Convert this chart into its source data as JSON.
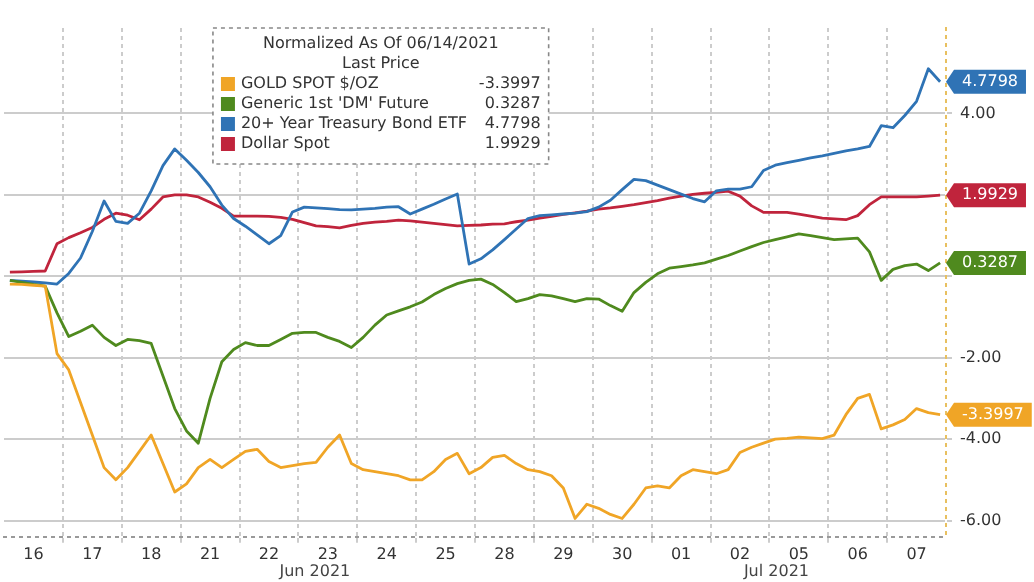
{
  "chart_data": {
    "type": "line",
    "legend_title": "Normalized As Of 06/14/2021",
    "subtitle": "Last Price",
    "legend": "top",
    "grid": true,
    "marker": "none",
    "line_style": "solid",
    "categories": [
      null,
      null,
      "16",
      null,
      null,
      null,
      null,
      "17",
      null,
      null,
      null,
      null,
      "18",
      null,
      null,
      null,
      null,
      "21",
      null,
      null,
      null,
      null,
      "22",
      null,
      null,
      null,
      null,
      "23",
      null,
      null,
      null,
      null,
      "24",
      null,
      null,
      null,
      null,
      "25",
      null,
      null,
      null,
      null,
      "28",
      null,
      null,
      null,
      null,
      "29",
      null,
      null,
      null,
      null,
      "30",
      null,
      null,
      null,
      null,
      "01",
      null,
      null,
      null,
      null,
      "02",
      null,
      null,
      null,
      null,
      "05",
      null,
      null,
      null,
      null,
      "06",
      null,
      null,
      null,
      null,
      "07",
      null,
      null
    ],
    "ylim": [
      -6.4,
      6.1
    ],
    "yticks": [
      {
        "value": -6,
        "label": "-6.00"
      },
      {
        "value": -4,
        "label": "-4.00"
      },
      {
        "value": -2,
        "label": "-2.00"
      },
      {
        "value": 0,
        "label": null
      },
      {
        "value": 2,
        "label": null
      },
      {
        "value": 4,
        "label": "4.00"
      }
    ],
    "annotations": [
      "Jun 2021",
      "Jul 2021"
    ],
    "series": [
      {
        "name": "GOLD SPOT $/OZ",
        "color": "#f0a526",
        "values": [
          -0.19,
          -0.2,
          -0.22,
          -0.24,
          -1.9,
          -2.3,
          -3.1,
          -3.9,
          -4.7,
          -5.0,
          -4.7,
          -4.3,
          -3.9,
          -4.6,
          -5.3,
          -5.1,
          -4.7,
          -4.5,
          -4.7,
          -4.5,
          -4.3,
          -4.25,
          -4.55,
          -4.7,
          -4.65,
          -4.6,
          -4.57,
          -4.2,
          -3.9,
          -4.6,
          -4.75,
          -4.8,
          -4.85,
          -4.9,
          -5.0,
          -5.0,
          -4.8,
          -4.5,
          -4.35,
          -4.85,
          -4.7,
          -4.45,
          -4.4,
          -4.6,
          -4.75,
          -4.8,
          -4.9,
          -5.2,
          -5.95,
          -5.6,
          -5.7,
          -5.85,
          -5.95,
          -5.6,
          -5.2,
          -5.15,
          -5.2,
          -4.9,
          -4.75,
          -4.8,
          -4.85,
          -4.75,
          -4.33,
          -4.2,
          -4.1,
          -4.0,
          -3.98,
          -3.95,
          -3.97,
          -3.99,
          -3.9,
          -3.4,
          -3.0,
          -2.9,
          -3.75,
          -3.65,
          -3.52,
          -3.25,
          -3.35,
          -3.3997
        ],
        "value_labels": [
          null,
          null,
          null,
          null,
          null,
          null,
          null,
          null,
          null,
          null,
          null,
          null,
          null,
          null,
          null,
          null,
          null,
          null,
          null,
          null,
          null,
          null,
          null,
          null,
          null,
          null,
          null,
          null,
          null,
          null,
          null,
          null,
          null,
          null,
          null,
          null,
          null,
          null,
          null,
          null,
          null,
          null,
          null,
          null,
          null,
          null,
          null,
          null,
          null,
          null,
          null,
          null,
          null,
          null,
          null,
          null,
          null,
          null,
          null,
          null,
          null,
          null,
          null,
          null,
          null,
          null,
          null,
          null,
          null,
          null,
          null,
          null,
          null,
          null,
          null,
          null,
          null,
          null,
          null,
          "-3.3997"
        ]
      },
      {
        "name": "Generic 1st 'DM' Future",
        "color": "#4f8a1e",
        "values": [
          -0.1,
          -0.15,
          -0.2,
          -0.24,
          -0.9,
          -1.48,
          -1.35,
          -1.2,
          -1.5,
          -1.7,
          -1.55,
          -1.58,
          -1.65,
          -2.45,
          -3.25,
          -3.8,
          -4.1,
          -3.0,
          -2.1,
          -1.8,
          -1.63,
          -1.7,
          -1.7,
          -1.55,
          -1.4,
          -1.38,
          -1.38,
          -1.5,
          -1.6,
          -1.75,
          -1.5,
          -1.2,
          -0.95,
          -0.85,
          -0.75,
          -0.63,
          -0.45,
          -0.3,
          -0.18,
          -0.1,
          -0.07,
          -0.2,
          -0.4,
          -0.62,
          -0.55,
          -0.45,
          -0.48,
          -0.55,
          -0.62,
          -0.55,
          -0.56,
          -0.72,
          -0.86,
          -0.4,
          -0.15,
          0.06,
          0.2,
          0.24,
          0.28,
          0.33,
          0.42,
          0.51,
          0.62,
          0.73,
          0.83,
          0.9,
          0.97,
          1.04,
          1.0,
          0.95,
          0.9,
          0.92,
          0.94,
          0.6,
          -0.1,
          0.17,
          0.26,
          0.3,
          0.14,
          0.3287
        ],
        "value_labels": [
          null,
          null,
          null,
          null,
          null,
          null,
          null,
          null,
          null,
          null,
          null,
          null,
          null,
          null,
          null,
          null,
          null,
          null,
          null,
          null,
          null,
          null,
          null,
          null,
          null,
          null,
          null,
          null,
          null,
          null,
          null,
          null,
          null,
          null,
          null,
          null,
          null,
          null,
          null,
          null,
          null,
          null,
          null,
          null,
          null,
          null,
          null,
          null,
          null,
          null,
          null,
          null,
          null,
          null,
          null,
          null,
          null,
          null,
          null,
          null,
          null,
          null,
          null,
          null,
          null,
          null,
          null,
          null,
          null,
          null,
          null,
          null,
          null,
          null,
          null,
          null,
          null,
          null,
          null,
          "0.3287"
        ]
      },
      {
        "name": "20+ Year Treasury Bond ETF",
        "color": "#2f73b5",
        "values": [
          -0.1,
          -0.12,
          -0.14,
          -0.16,
          -0.19,
          0.07,
          0.45,
          1.1,
          1.85,
          1.35,
          1.3,
          1.55,
          2.1,
          2.72,
          3.13,
          2.85,
          2.55,
          2.2,
          1.75,
          1.42,
          1.23,
          1.02,
          0.8,
          1.0,
          1.58,
          1.7,
          1.68,
          1.66,
          1.64,
          1.63,
          1.65,
          1.67,
          1.7,
          1.71,
          1.53,
          1.65,
          1.77,
          1.9,
          2.02,
          0.3,
          0.43,
          0.65,
          0.9,
          1.16,
          1.42,
          1.49,
          1.51,
          1.53,
          1.55,
          1.59,
          1.7,
          1.87,
          2.13,
          2.38,
          2.35,
          2.24,
          2.13,
          2.02,
          1.91,
          1.83,
          2.1,
          2.14,
          2.14,
          2.2,
          2.6,
          2.73,
          2.79,
          2.85,
          2.91,
          2.96,
          3.02,
          3.08,
          3.13,
          3.19,
          3.7,
          3.65,
          3.95,
          4.3,
          5.1,
          4.7798
        ],
        "value_labels": [
          null,
          null,
          null,
          null,
          null,
          null,
          null,
          null,
          null,
          null,
          null,
          null,
          null,
          null,
          null,
          null,
          null,
          null,
          null,
          null,
          null,
          null,
          null,
          null,
          null,
          null,
          null,
          null,
          null,
          null,
          null,
          null,
          null,
          null,
          null,
          null,
          null,
          null,
          null,
          null,
          null,
          null,
          null,
          null,
          null,
          null,
          null,
          null,
          null,
          null,
          null,
          null,
          null,
          null,
          null,
          null,
          null,
          null,
          null,
          null,
          null,
          null,
          null,
          null,
          null,
          null,
          null,
          null,
          null,
          null,
          null,
          null,
          null,
          null,
          null,
          null,
          null,
          null,
          null,
          "4.7798"
        ]
      },
      {
        "name": "Dollar Spot",
        "color": "#c0243c",
        "values": [
          0.1,
          0.11,
          0.12,
          0.13,
          0.8,
          0.95,
          1.07,
          1.2,
          1.4,
          1.55,
          1.5,
          1.39,
          1.65,
          1.95,
          2.0,
          2.0,
          1.95,
          1.82,
          1.67,
          1.48,
          1.48,
          1.48,
          1.47,
          1.45,
          1.4,
          1.32,
          1.24,
          1.22,
          1.19,
          1.25,
          1.3,
          1.33,
          1.35,
          1.38,
          1.36,
          1.33,
          1.3,
          1.27,
          1.24,
          1.25,
          1.26,
          1.28,
          1.29,
          1.34,
          1.38,
          1.43,
          1.47,
          1.52,
          1.56,
          1.6,
          1.65,
          1.68,
          1.72,
          1.76,
          1.81,
          1.86,
          1.92,
          1.97,
          2.01,
          2.04,
          2.06,
          2.09,
          1.97,
          1.73,
          1.57,
          1.57,
          1.57,
          1.53,
          1.48,
          1.43,
          1.41,
          1.39,
          1.49,
          1.76,
          1.95,
          1.95,
          1.95,
          1.95,
          1.97,
          1.9929
        ],
        "value_labels": [
          null,
          null,
          null,
          null,
          null,
          null,
          null,
          null,
          null,
          null,
          null,
          null,
          null,
          null,
          null,
          null,
          null,
          null,
          null,
          null,
          null,
          null,
          null,
          null,
          null,
          null,
          null,
          null,
          null,
          null,
          null,
          null,
          null,
          null,
          null,
          null,
          null,
          null,
          null,
          null,
          null,
          null,
          null,
          null,
          null,
          null,
          null,
          null,
          null,
          null,
          null,
          null,
          null,
          null,
          null,
          null,
          null,
          null,
          null,
          null,
          null,
          null,
          null,
          null,
          null,
          null,
          null,
          null,
          null,
          null,
          null,
          null,
          null,
          null,
          null,
          null,
          null,
          null,
          null,
          "1.9929"
        ]
      }
    ]
  }
}
